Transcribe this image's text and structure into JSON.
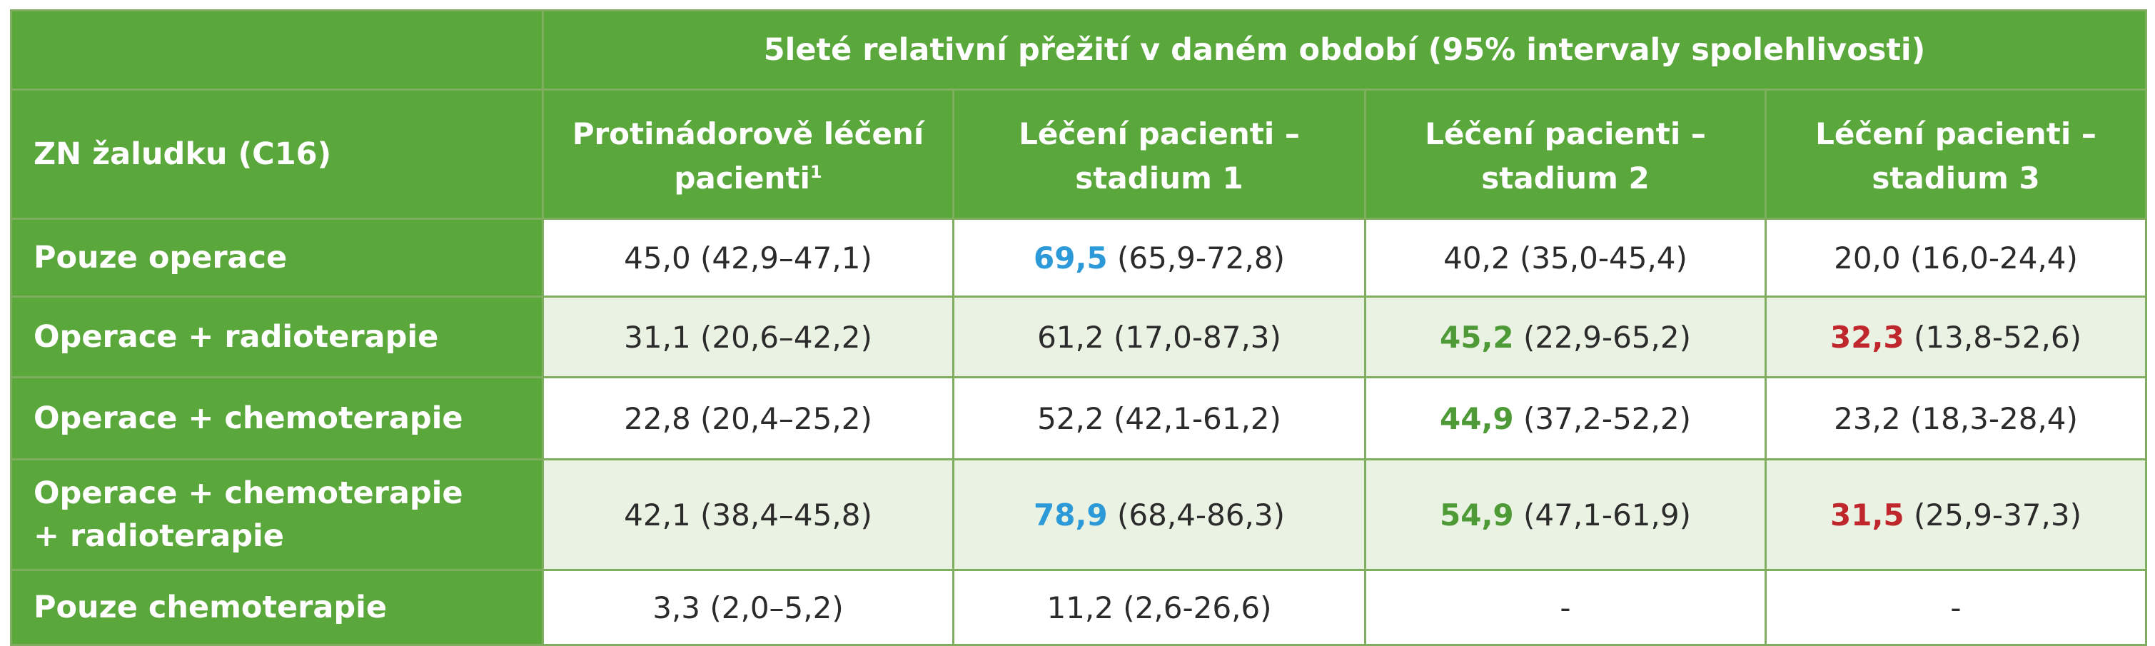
{
  "table": {
    "span_header": "5leté relativní přežití v daném období (95% intervaly spolehlivosti)",
    "stub_header": "ZN žaludku (C16)",
    "columns": [
      {
        "line1": "Protinádorově léčení",
        "line2": "pacienti",
        "sup": "1"
      },
      {
        "line1": "Léčení pacienti –",
        "line2": "stadium 1",
        "sup": ""
      },
      {
        "line1": "Léčení pacienti –",
        "line2": "stadium 2",
        "sup": ""
      },
      {
        "line1": "Léčení pacienti –",
        "line2": "stadium 3",
        "sup": ""
      }
    ],
    "rows": [
      {
        "label_line1": "Pouze operace",
        "label_line2": "",
        "cells": [
          {
            "value": "45,0",
            "ci": " (42,9–47,1)",
            "highlight": "none"
          },
          {
            "value": "69,5",
            "ci": " (65,9-72,8)",
            "highlight": "blue"
          },
          {
            "value": "40,2",
            "ci": " (35,0-45,4)",
            "highlight": "none"
          },
          {
            "value": "20,0",
            "ci": " (16,0-24,4)",
            "highlight": "none"
          }
        ]
      },
      {
        "label_line1": "Operace + radioterapie",
        "label_line2": "",
        "cells": [
          {
            "value": "31,1",
            "ci": " (20,6–42,2)",
            "highlight": "none"
          },
          {
            "value": "61,2",
            "ci": " (17,0-87,3)",
            "highlight": "none"
          },
          {
            "value": "45,2",
            "ci": " (22,9-65,2)",
            "highlight": "green"
          },
          {
            "value": "32,3",
            "ci": " (13,8-52,6)",
            "highlight": "red"
          }
        ]
      },
      {
        "label_line1": "Operace + chemoterapie",
        "label_line2": "",
        "cells": [
          {
            "value": "22,8",
            "ci": " (20,4–25,2)",
            "highlight": "none"
          },
          {
            "value": "52,2",
            "ci": " (42,1-61,2)",
            "highlight": "none"
          },
          {
            "value": "44,9",
            "ci": " (37,2-52,2)",
            "highlight": "green"
          },
          {
            "value": "23,2",
            "ci": " (18,3-28,4)",
            "highlight": "none"
          }
        ]
      },
      {
        "label_line1": "Operace + chemoterapie",
        "label_line2": "+ radioterapie",
        "cells": [
          {
            "value": "42,1",
            "ci": " (38,4–45,8)",
            "highlight": "none"
          },
          {
            "value": "78,9",
            "ci": " (68,4-86,3)",
            "highlight": "blue"
          },
          {
            "value": "54,9",
            "ci": " (47,1-61,9)",
            "highlight": "green"
          },
          {
            "value": "31,5",
            "ci": " (25,9-37,3)",
            "highlight": "red"
          }
        ]
      },
      {
        "label_line1": "Pouze chemoterapie",
        "label_line2": "",
        "cells": [
          {
            "value": "3,3",
            "ci": " (2,0–5,2)",
            "highlight": "none"
          },
          {
            "value": "11,2",
            "ci": " (2,6-26,6)",
            "highlight": "none"
          },
          {
            "value": "-",
            "ci": "",
            "highlight": "none"
          },
          {
            "value": "-",
            "ci": "",
            "highlight": "none"
          }
        ]
      }
    ]
  },
  "colors": {
    "header_green": "#5aa83b",
    "row_shade": "#eaf3e3",
    "highlight_blue": "#2c9ad8",
    "highlight_green": "#4e9a36",
    "highlight_red": "#c0272d"
  }
}
